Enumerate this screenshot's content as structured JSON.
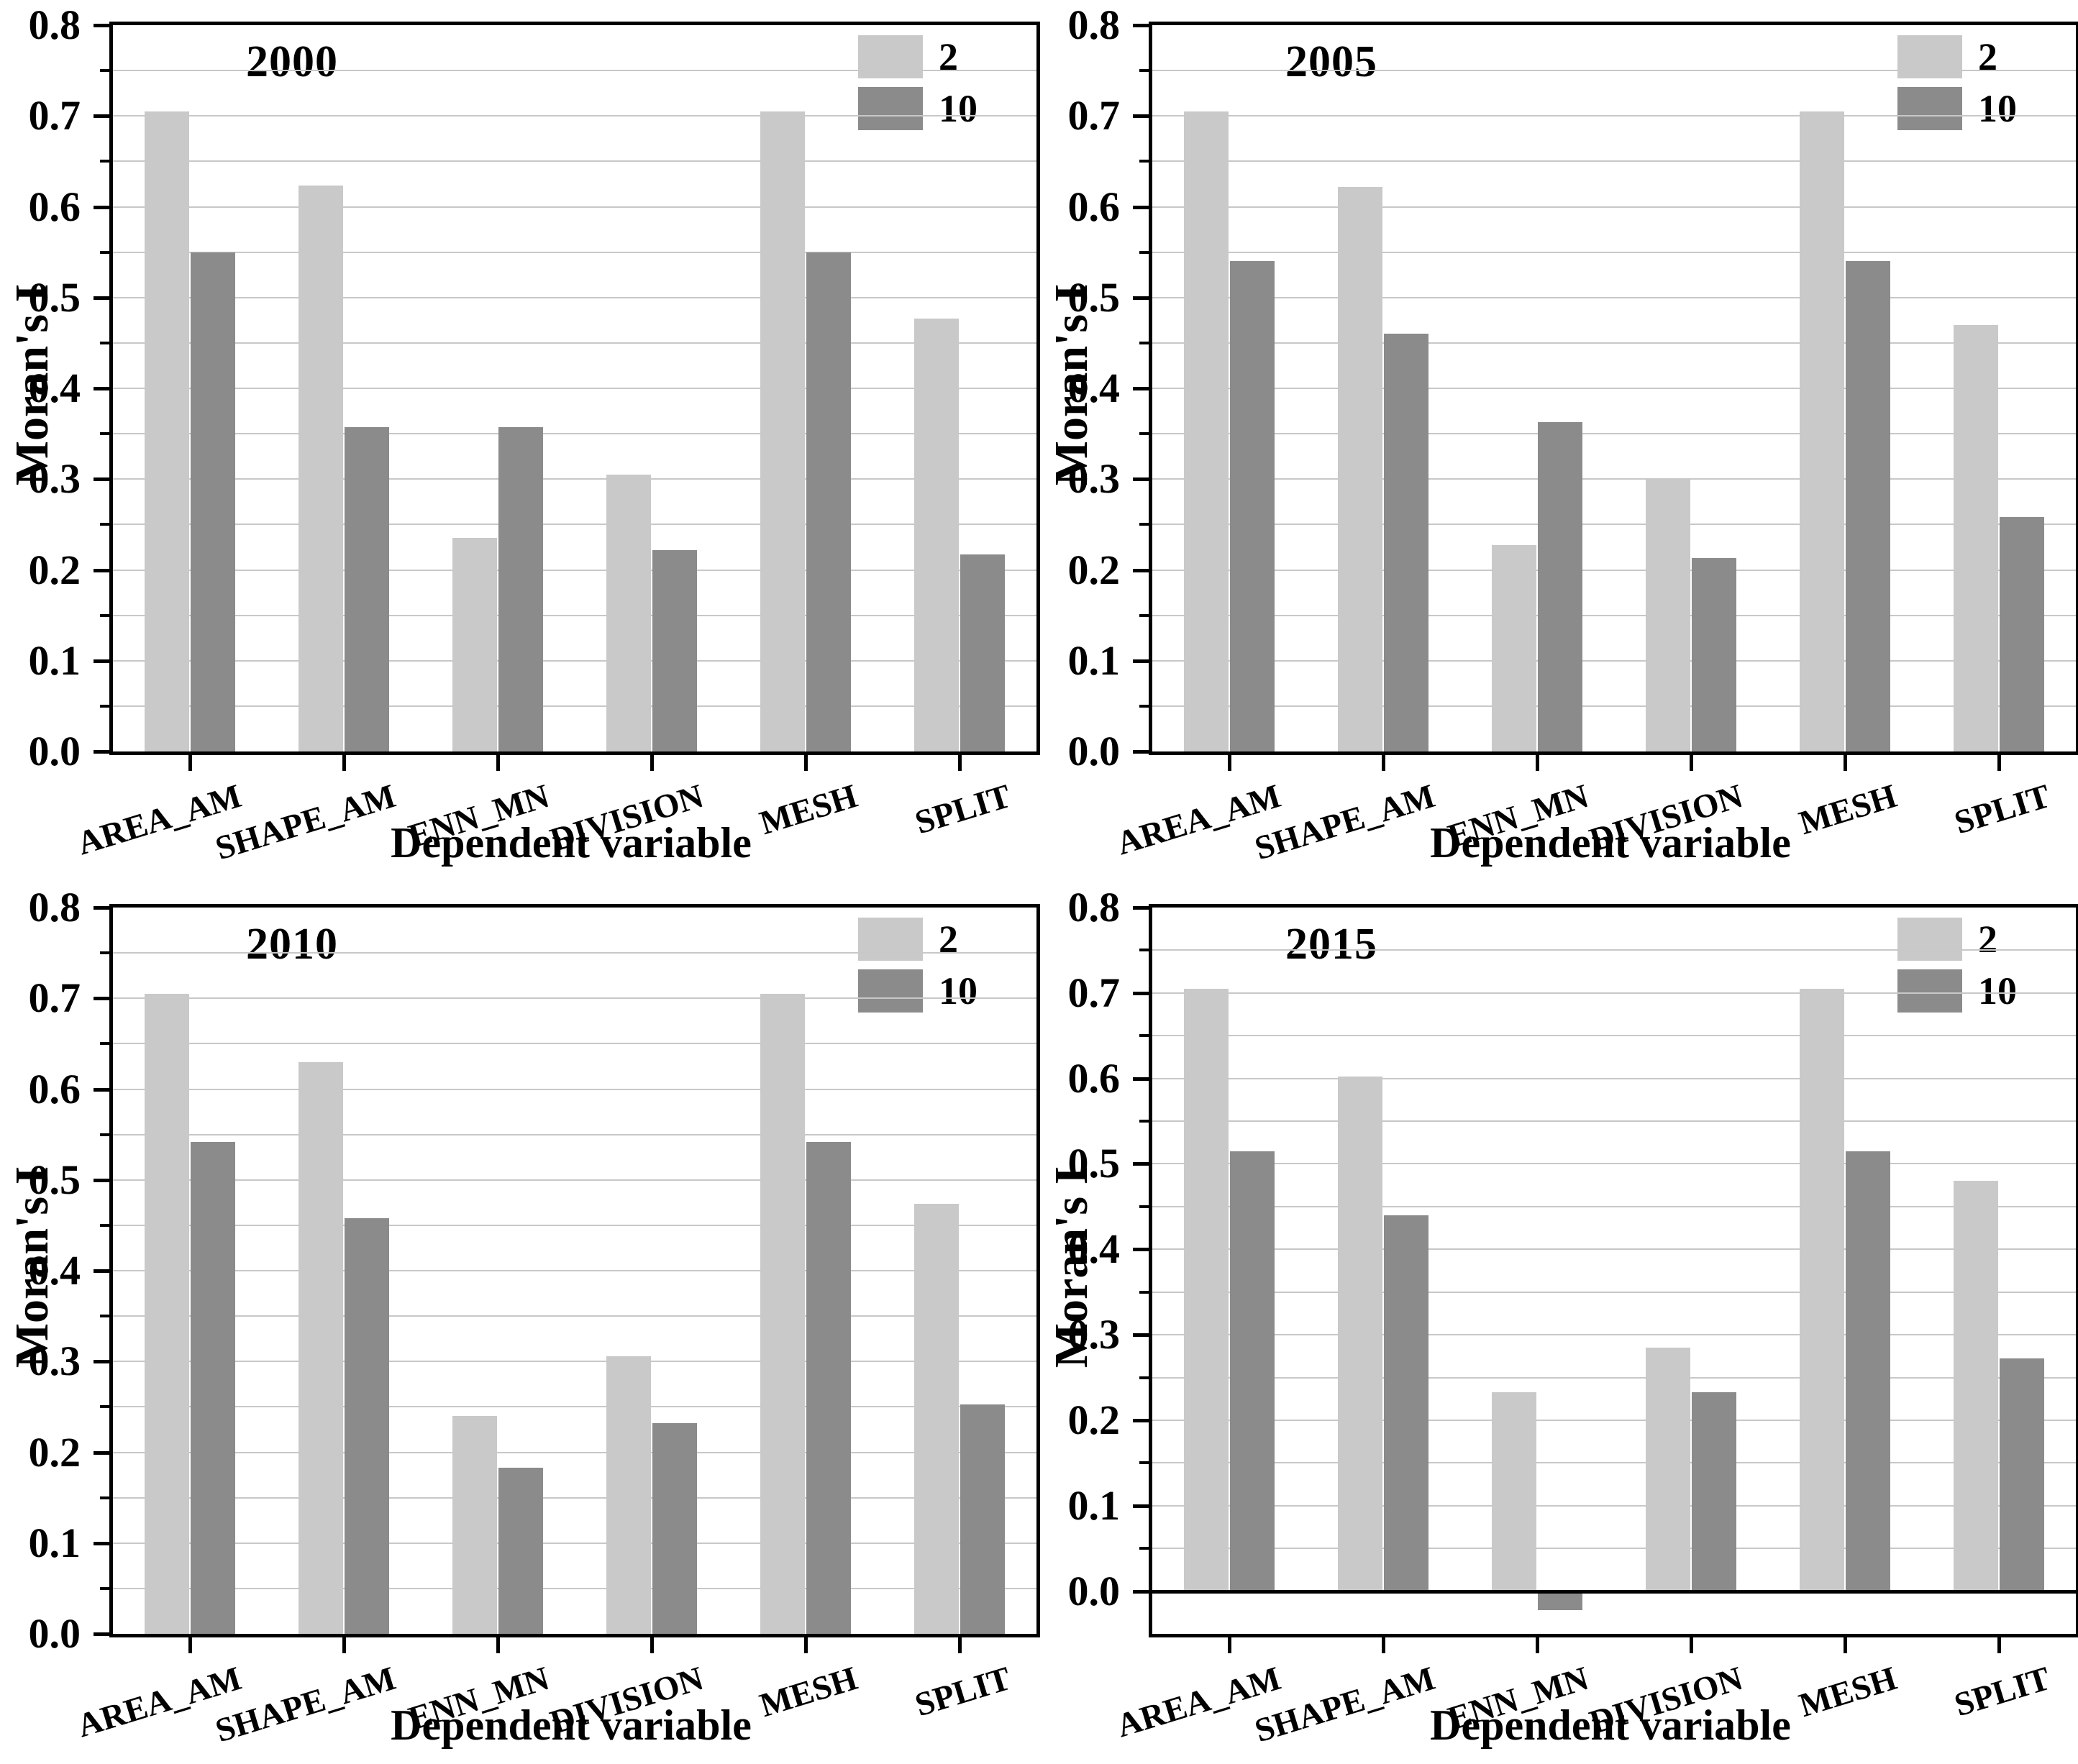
{
  "figure": {
    "panels_count": 4,
    "background": "#ffffff"
  },
  "styles": {
    "bar_light": "#c9c9c9",
    "bar_dark": "#8b8b8b",
    "gridline_color": "#c8c8c8",
    "frame_color": "#000000"
  },
  "chart_data": [
    {
      "type": "bar",
      "title": "2000",
      "xlabel": "Dependent variable",
      "ylabel": "Moran's I",
      "categories": [
        "AREA_AM",
        "SHAPE_AM",
        "ENN_MN",
        "DIVISION",
        "MESH",
        "SPLIT"
      ],
      "series": [
        {
          "name": "2",
          "color": "#c9c9c9",
          "values": [
            0.705,
            0.623,
            0.235,
            0.305,
            0.705,
            0.477
          ]
        },
        {
          "name": "10",
          "color": "#8b8b8b",
          "values": [
            0.55,
            0.357,
            0.357,
            0.222,
            0.55,
            0.217
          ]
        }
      ],
      "ylim": [
        0,
        0.8
      ],
      "ytick_step": 0.1,
      "grid_step": 0.05,
      "grid": true,
      "legend_position": "top-right"
    },
    {
      "type": "bar",
      "title": "2005",
      "xlabel": "Dependent variable",
      "ylabel": "Moran's I",
      "categories": [
        "AREA_AM",
        "SHAPE_AM",
        "ENN_MN",
        "DIVISION",
        "MESH",
        "SPLIT"
      ],
      "series": [
        {
          "name": "2",
          "color": "#c9c9c9",
          "values": [
            0.705,
            0.622,
            0.227,
            0.301,
            0.705,
            0.47
          ]
        },
        {
          "name": "10",
          "color": "#8b8b8b",
          "values": [
            0.54,
            0.46,
            0.363,
            0.213,
            0.54,
            0.258
          ]
        }
      ],
      "ylim": [
        0,
        0.8
      ],
      "ytick_step": 0.1,
      "grid_step": 0.05,
      "grid": true,
      "legend_position": "top-right"
    },
    {
      "type": "bar",
      "title": "2010",
      "xlabel": "Dependent variable",
      "ylabel": "Moran's I",
      "categories": [
        "AREA_AM",
        "SHAPE_AM",
        "ENN_MN",
        "DIVISION",
        "MESH",
        "SPLIT"
      ],
      "series": [
        {
          "name": "2",
          "color": "#c9c9c9",
          "values": [
            0.705,
            0.63,
            0.24,
            0.306,
            0.705,
            0.474
          ]
        },
        {
          "name": "10",
          "color": "#8b8b8b",
          "values": [
            0.542,
            0.458,
            0.183,
            0.232,
            0.542,
            0.253
          ]
        }
      ],
      "ylim": [
        0,
        0.8
      ],
      "ytick_step": 0.1,
      "grid_step": 0.05,
      "grid": true,
      "legend_position": "top-right"
    },
    {
      "type": "bar",
      "title": "2015",
      "xlabel": "Dependent variable",
      "ylabel": "Moran's I",
      "categories": [
        "AREA_AM",
        "SHAPE_AM",
        "ENN_MN",
        "DIVISION",
        "MESH",
        "SPLIT"
      ],
      "series": [
        {
          "name": "2",
          "color": "#c9c9c9",
          "values": [
            0.705,
            0.602,
            0.233,
            0.285,
            0.705,
            0.48
          ]
        },
        {
          "name": "10",
          "color": "#8b8b8b",
          "values": [
            0.515,
            0.44,
            -0.022,
            0.233,
            0.515,
            0.272
          ]
        }
      ],
      "ylim": [
        -0.05,
        0.8
      ],
      "ytick_step": 0.1,
      "grid_step": 0.05,
      "grid": true,
      "legend_position": "top-right"
    }
  ]
}
